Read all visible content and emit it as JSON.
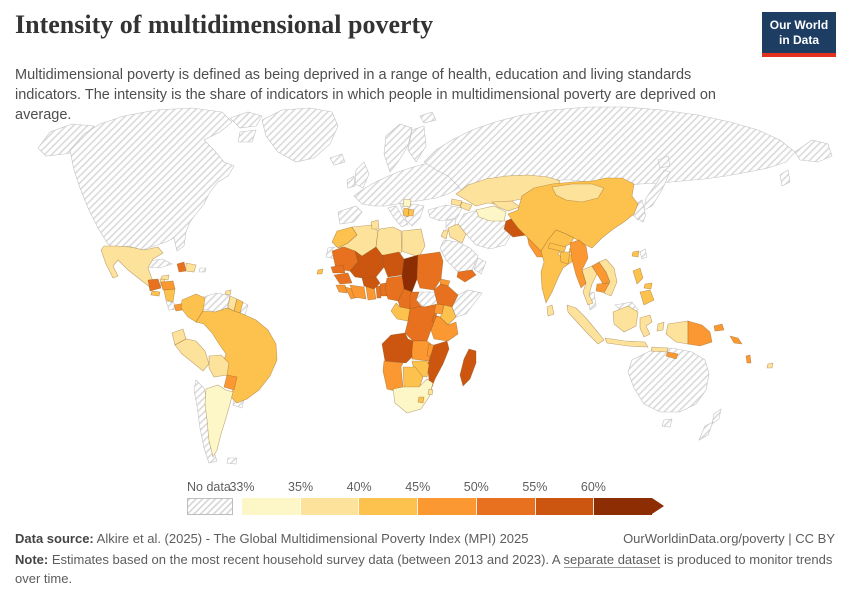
{
  "header": {
    "title": "Intensity of multidimensional poverty",
    "subtitle": "Multidimensional poverty is defined as being deprived in a range of health, education and living standards indicators. The intensity is the share of indicators in which people in multidimensional poverty are deprived on average.",
    "logo": {
      "line1": "Our World",
      "line2": "in Data",
      "bg_color": "#1d3d63",
      "accent_color": "#e0321f"
    }
  },
  "legend": {
    "no_data_label": "No data",
    "tick_labels": [
      "33%",
      "35%",
      "40%",
      "45%",
      "50%",
      "55%",
      "60%"
    ]
  },
  "footer": {
    "datasource_label": "Data source:",
    "datasource_text": " Alkire et al. (2025) - The Global Multidimensional Poverty Index (MPI) 2025",
    "attribution": "OurWorldinData.org/poverty | CC BY",
    "note_label": "Note:",
    "note_pre": " Estimates based on the most recent household survey data (between 2013 and 2023). A ",
    "note_link": "separate dataset",
    "note_post": " is produced to monitor trends over time."
  },
  "chart_data": {
    "type": "heatmap",
    "subtype": "choropleth_world_map",
    "title": "Intensity of multidimensional poverty",
    "unit": "%",
    "legend_position": "bottom",
    "bins": [
      {
        "range": "33-35%",
        "color": "#fdf7c7"
      },
      {
        "range": "35-40%",
        "color": "#fde29c"
      },
      {
        "range": "40-45%",
        "color": "#fdc24e"
      },
      {
        "range": "45-50%",
        "color": "#fb9832"
      },
      {
        "range": "50-55%",
        "color": "#e8711f"
      },
      {
        "range": "55-60%",
        "color": "#cc5510"
      },
      {
        "range": "60%+",
        "color": "#8c2d04"
      }
    ],
    "countries": {
      "Mexico": "35-40%",
      "Guatemala": "50-55%",
      "Belize": "35-40%",
      "Honduras": "45-50%",
      "El Salvador": "40-45%",
      "Nicaragua": "40-45%",
      "Panama": "45-50%",
      "Haiti": "50-55%",
      "Dominican Republic": "35-40%",
      "Jamaica": "35-40%",
      "Trinidad and Tobago": "35-40%",
      "Colombia": "40-45%",
      "Guyana": "35-40%",
      "Suriname": "40-45%",
      "Brazil": "40-45%",
      "Ecuador": "35-40%",
      "Peru": "35-40%",
      "Bolivia": "35-40%",
      "Paraguay": "45-50%",
      "Argentina": "33-35%",
      "Serbia": "33-35%",
      "Albania": "40-45%",
      "North Macedonia": "40-45%",
      "Morocco": "40-45%",
      "Algeria": "35-40%",
      "Tunisia": "35-40%",
      "Libya": "35-40%",
      "Egypt": "35-40%",
      "Mauritania": "50-55%",
      "Mali": "55-60%",
      "Niger": "55-60%",
      "Chad": "60%+",
      "Sudan": "50-55%",
      "Eritrea": "45-50%",
      "Ethiopia": "50-55%",
      "Senegal": "50-55%",
      "Guinea": "50-55%",
      "Sierra Leone": "45-50%",
      "Liberia": "45-50%",
      "Cote d'Ivoire": "45-50%",
      "Ghana": "45-50%",
      "Togo": "50-55%",
      "Benin": "50-55%",
      "Burkina Faso": "55-60%",
      "Nigeria": "50-55%",
      "Cameroon": "50-55%",
      "Central African Republic": "50-55%",
      "Gabon": "40-45%",
      "DR Congo": "50-55%",
      "Uganda": "45-50%",
      "Kenya": "40-45%",
      "Rwanda": "50-55%",
      "Tanzania": "45-50%",
      "Angola": "55-60%",
      "Zambia": "45-50%",
      "Malawi": "45-50%",
      "Mozambique": "55-60%",
      "Zimbabwe": "40-45%",
      "Botswana": "40-45%",
      "Namibia": "45-50%",
      "South Africa": "33-35%",
      "Lesotho": "40-45%",
      "Eswatini": "35-40%",
      "Madagascar": "55-60%",
      "Iraq": "35-40%",
      "Jordan": "35-40%",
      "Yemen": "50-55%",
      "Georgia": "35-40%",
      "Azerbaijan": "35-40%",
      "Kazakhstan": "35-40%",
      "Turkmenistan": "33-35%",
      "Uzbekistan": "35-40%",
      "Kyrgyzstan": "35-40%",
      "Tajikistan": "35-40%",
      "Afghanistan": "55-60%",
      "Pakistan": "45-50%",
      "India": "40-45%",
      "Nepal": "40-45%",
      "Bhutan": "40-45%",
      "Bangladesh": "40-45%",
      "Sri Lanka": "35-40%",
      "Myanmar": "45-50%",
      "Thailand": "35-40%",
      "Laos": "45-50%",
      "Cambodia": "45-50%",
      "Vietnam": "35-40%",
      "Indonesia": "35-40%",
      "Philippines": "40-45%",
      "Timor-Leste": "45-50%",
      "Papua New Guinea": "45-50%",
      "Solomon Islands": "45-50%",
      "Vanuatu": "45-50%",
      "Fiji": "35-40%",
      "Cape Verde": "40-45%",
      "China": "40-45%",
      "Mongolia": "35-40%"
    },
    "no_data_regions": [
      "United States",
      "Canada",
      "Greenland",
      "Iceland",
      "United Kingdom",
      "Ireland",
      "Mainland Europe",
      "Scandinavia",
      "Iberia",
      "Italy",
      "Balkans/Greece",
      "Russia",
      "Turkey",
      "Syria",
      "Saudi Arabia",
      "Iran",
      "Oman",
      "Somalia",
      "South Sudan",
      "Western Sahara",
      "Cuba",
      "Puerto Rico",
      "Costa Rica",
      "Venezuela",
      "French Guiana",
      "Chile",
      "Uruguay",
      "Falkland Islands",
      "Malaysia",
      "Taiwan",
      "Japan",
      "Korea",
      "Australia",
      "Tasmania",
      "New Zealand"
    ]
  }
}
